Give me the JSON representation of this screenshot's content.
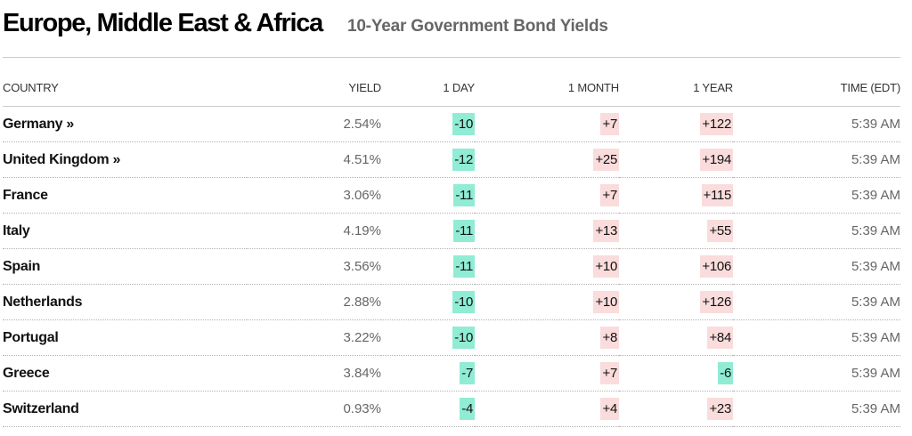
{
  "header": {
    "title": "Europe, Middle East & Africa",
    "subtitle": "10-Year Government Bond Yields"
  },
  "colors": {
    "negative_bg": "#90ecd4",
    "positive_bg": "#fadcdc"
  },
  "table": {
    "columns": [
      "COUNTRY",
      "YIELD",
      "1 DAY",
      "1 MONTH",
      "1 YEAR",
      "TIME (EDT)"
    ],
    "rows": [
      {
        "country": "Germany »",
        "yield": "2.54%",
        "day": "-10",
        "month": "+7",
        "year": "+122",
        "time": "5:39 AM"
      },
      {
        "country": "United Kingdom »",
        "yield": "4.51%",
        "day": "-12",
        "month": "+25",
        "year": "+194",
        "time": "5:39 AM"
      },
      {
        "country": "France",
        "yield": "3.06%",
        "day": "-11",
        "month": "+7",
        "year": "+115",
        "time": "5:39 AM"
      },
      {
        "country": "Italy",
        "yield": "4.19%",
        "day": "-11",
        "month": "+13",
        "year": "+55",
        "time": "5:39 AM"
      },
      {
        "country": "Spain",
        "yield": "3.56%",
        "day": "-11",
        "month": "+10",
        "year": "+106",
        "time": "5:39 AM"
      },
      {
        "country": "Netherlands",
        "yield": "2.88%",
        "day": "-10",
        "month": "+10",
        "year": "+126",
        "time": "5:39 AM"
      },
      {
        "country": "Portugal",
        "yield": "3.22%",
        "day": "-10",
        "month": "+8",
        "year": "+84",
        "time": "5:39 AM"
      },
      {
        "country": "Greece",
        "yield": "3.84%",
        "day": "-7",
        "month": "+7",
        "year": "-6",
        "time": "5:39 AM"
      },
      {
        "country": "Switzerland",
        "yield": "0.93%",
        "day": "-4",
        "month": "+4",
        "year": "+23",
        "time": "5:39 AM"
      }
    ]
  }
}
